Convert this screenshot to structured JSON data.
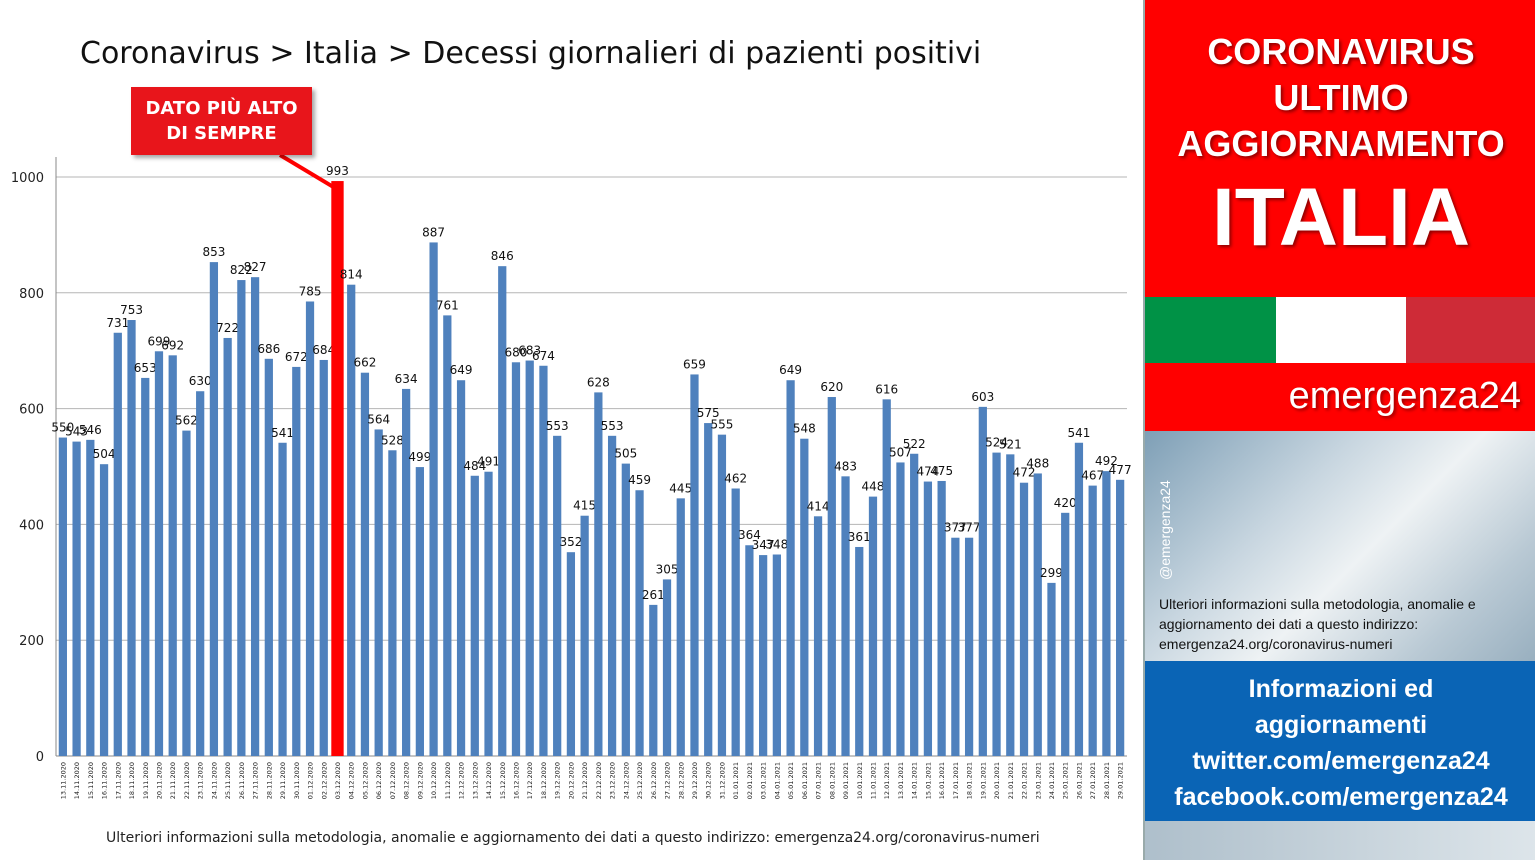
{
  "title": "Coronavirus > Italia > Decessi giornalieri di pazienti positivi",
  "callout": {
    "line1": "DATO PIÙ ALTO",
    "line2": "DI SEMPRE"
  },
  "footnote": "Ulteriori informazioni sulla metodologia, anomalie e aggiornamento dei dati a questo indirizzo: emergenza24.org/coronavirus-numeri",
  "sidebar": {
    "line1": "CORONAVIRUS",
    "line2": "ULTIMO",
    "line3": "AGGIORNAMENTO",
    "big": "ITALIA",
    "brand": "emergenza24",
    "handle": "@emergenza24",
    "note": "Ulteriori informazioni sulla metodologia, anomalie e aggiornamento dei dati a questo indirizzo: emergenza24.org/coronavirus-numeri",
    "info1": "Informazioni ed",
    "info2": "aggiornamenti",
    "info3": "twitter.com/emergenza24",
    "info4": "facebook.com/emergenza24"
  },
  "colors": {
    "bar": "#4f81bd",
    "highlight": "#ff0000",
    "brand_red": "#ff0000",
    "brand_blue": "#0a64b5",
    "flag_green": "#009246",
    "flag_white": "#ffffff",
    "flag_red": "#ce2b37"
  },
  "chart_data": {
    "type": "bar",
    "ylim": [
      0,
      1000
    ],
    "yticks": [
      0,
      200,
      400,
      600,
      800,
      1000
    ],
    "grid": true,
    "highlight_category": "03.12.2020",
    "categories": [
      "13.11.2020",
      "14.11.2020",
      "15.11.2020",
      "16.11.2020",
      "17.11.2020",
      "18.11.2020",
      "19.11.2020",
      "20.11.2020",
      "21.11.2020",
      "22.11.2020",
      "23.11.2020",
      "24.11.2020",
      "25.11.2020",
      "26.11.2020",
      "27.11.2020",
      "28.11.2020",
      "29.11.2020",
      "30.11.2020",
      "01.12.2020",
      "02.12.2020",
      "03.12.2020",
      "04.12.2020",
      "05.12.2020",
      "06.12.2020",
      "07.12.2020",
      "08.12.2020",
      "09.12.2020",
      "10.12.2020",
      "11.12.2020",
      "12.12.2020",
      "13.12.2020",
      "14.12.2020",
      "15.12.2020",
      "16.12.2020",
      "17.12.2020",
      "18.12.2020",
      "19.12.2020",
      "20.12.2020",
      "21.12.2020",
      "22.12.2020",
      "23.12.2020",
      "24.12.2020",
      "25.12.2020",
      "26.12.2020",
      "27.12.2020",
      "28.12.2020",
      "29.12.2020",
      "30.12.2020",
      "31.12.2020",
      "01.01.2021",
      "02.01.2021",
      "03.01.2021",
      "04.01.2021",
      "05.01.2021",
      "06.01.2021",
      "07.01.2021",
      "08.01.2021",
      "09.01.2021",
      "10.01.2021",
      "11.01.2021",
      "12.01.2021",
      "13.01.2021",
      "14.01.2021",
      "15.01.2021",
      "16.01.2021",
      "17.01.2021",
      "18.01.2021",
      "19.01.2021",
      "20.01.2021",
      "21.01.2021",
      "22.01.2021",
      "23.01.2021",
      "24.01.2021",
      "25.01.2021",
      "26.01.2021",
      "27.01.2021",
      "28.01.2021",
      "29.01.2021"
    ],
    "values": [
      550,
      543,
      546,
      504,
      731,
      753,
      653,
      699,
      692,
      562,
      630,
      853,
      722,
      822,
      827,
      686,
      541,
      672,
      785,
      684,
      993,
      814,
      662,
      564,
      528,
      634,
      499,
      887,
      761,
      649,
      484,
      491,
      846,
      680,
      683,
      674,
      553,
      352,
      415,
      628,
      553,
      505,
      459,
      261,
      305,
      445,
      659,
      575,
      555,
      462,
      364,
      347,
      348,
      649,
      548,
      414,
      620,
      483,
      361,
      448,
      616,
      507,
      522,
      474,
      475,
      377,
      377,
      603,
      524,
      521,
      472,
      488,
      299,
      420,
      541,
      467,
      492,
      477
    ]
  }
}
